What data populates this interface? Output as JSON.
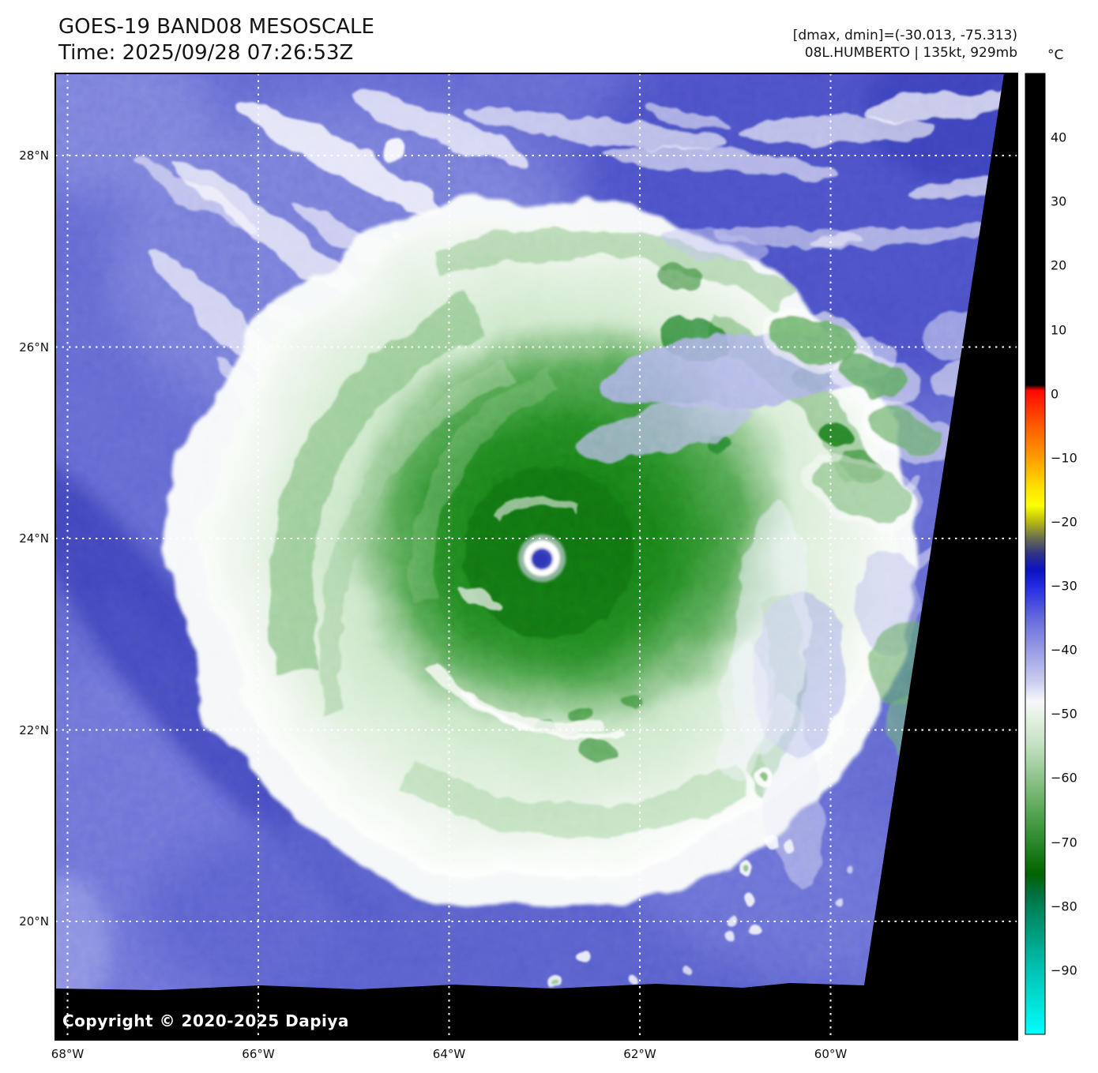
{
  "header": {
    "title_line1": "GOES-19 BAND08 MESOSCALE",
    "title_line2": "Time: 2025/09/28 07:26:53Z",
    "info_line1": "[dmax, dmin]=(-30.013, -75.313)",
    "info_line2": "08L.HUMBERTO | 135kt, 929mb"
  },
  "map": {
    "copyright": "Copyright © 2020-2025 Dapiya",
    "lat_labels": [
      "28°N",
      "26°N",
      "24°N",
      "22°N",
      "20°N"
    ],
    "lon_labels": [
      "68°W",
      "66°W",
      "64°W",
      "62°W",
      "60°W"
    ]
  },
  "colorbar": {
    "unit": "°C",
    "ticks": [
      "40",
      "30",
      "20",
      "10",
      "0",
      "−10",
      "−20",
      "−30",
      "−40",
      "−50",
      "−60",
      "−70",
      "−80",
      "−90"
    ]
  },
  "colors": {
    "ocean_background": "#5a60cc",
    "cold_cloud_green": "#187818",
    "outside_data_fill": "#000000",
    "grid_line": "#ffffff",
    "eye_center": "#2e34b5"
  }
}
